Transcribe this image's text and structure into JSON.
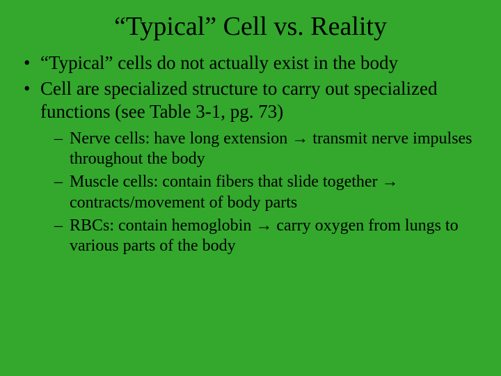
{
  "background_color": "#33a82d",
  "text_color": "#000000",
  "font_family": "Times New Roman",
  "title": {
    "text": "“Typical” Cell vs. Reality",
    "fontsize": 38,
    "align": "center"
  },
  "bullets": {
    "lvl1_fontsize": 27,
    "lvl2_fontsize": 24,
    "items": [
      {
        "text": "“Typical” cells do not actually exist in the body"
      },
      {
        "text": "Cell are specialized structure to carry out specialized functions (see Table 3-1, pg. 73)",
        "children": [
          "Nerve cells: have long extension → transmit nerve impulses throughout the body",
          "Muscle cells: contain fibers that slide together → contracts/movement of body parts",
          "RBCs: contain hemoglobin → carry oxygen from lungs to various parts of the body"
        ]
      }
    ]
  }
}
